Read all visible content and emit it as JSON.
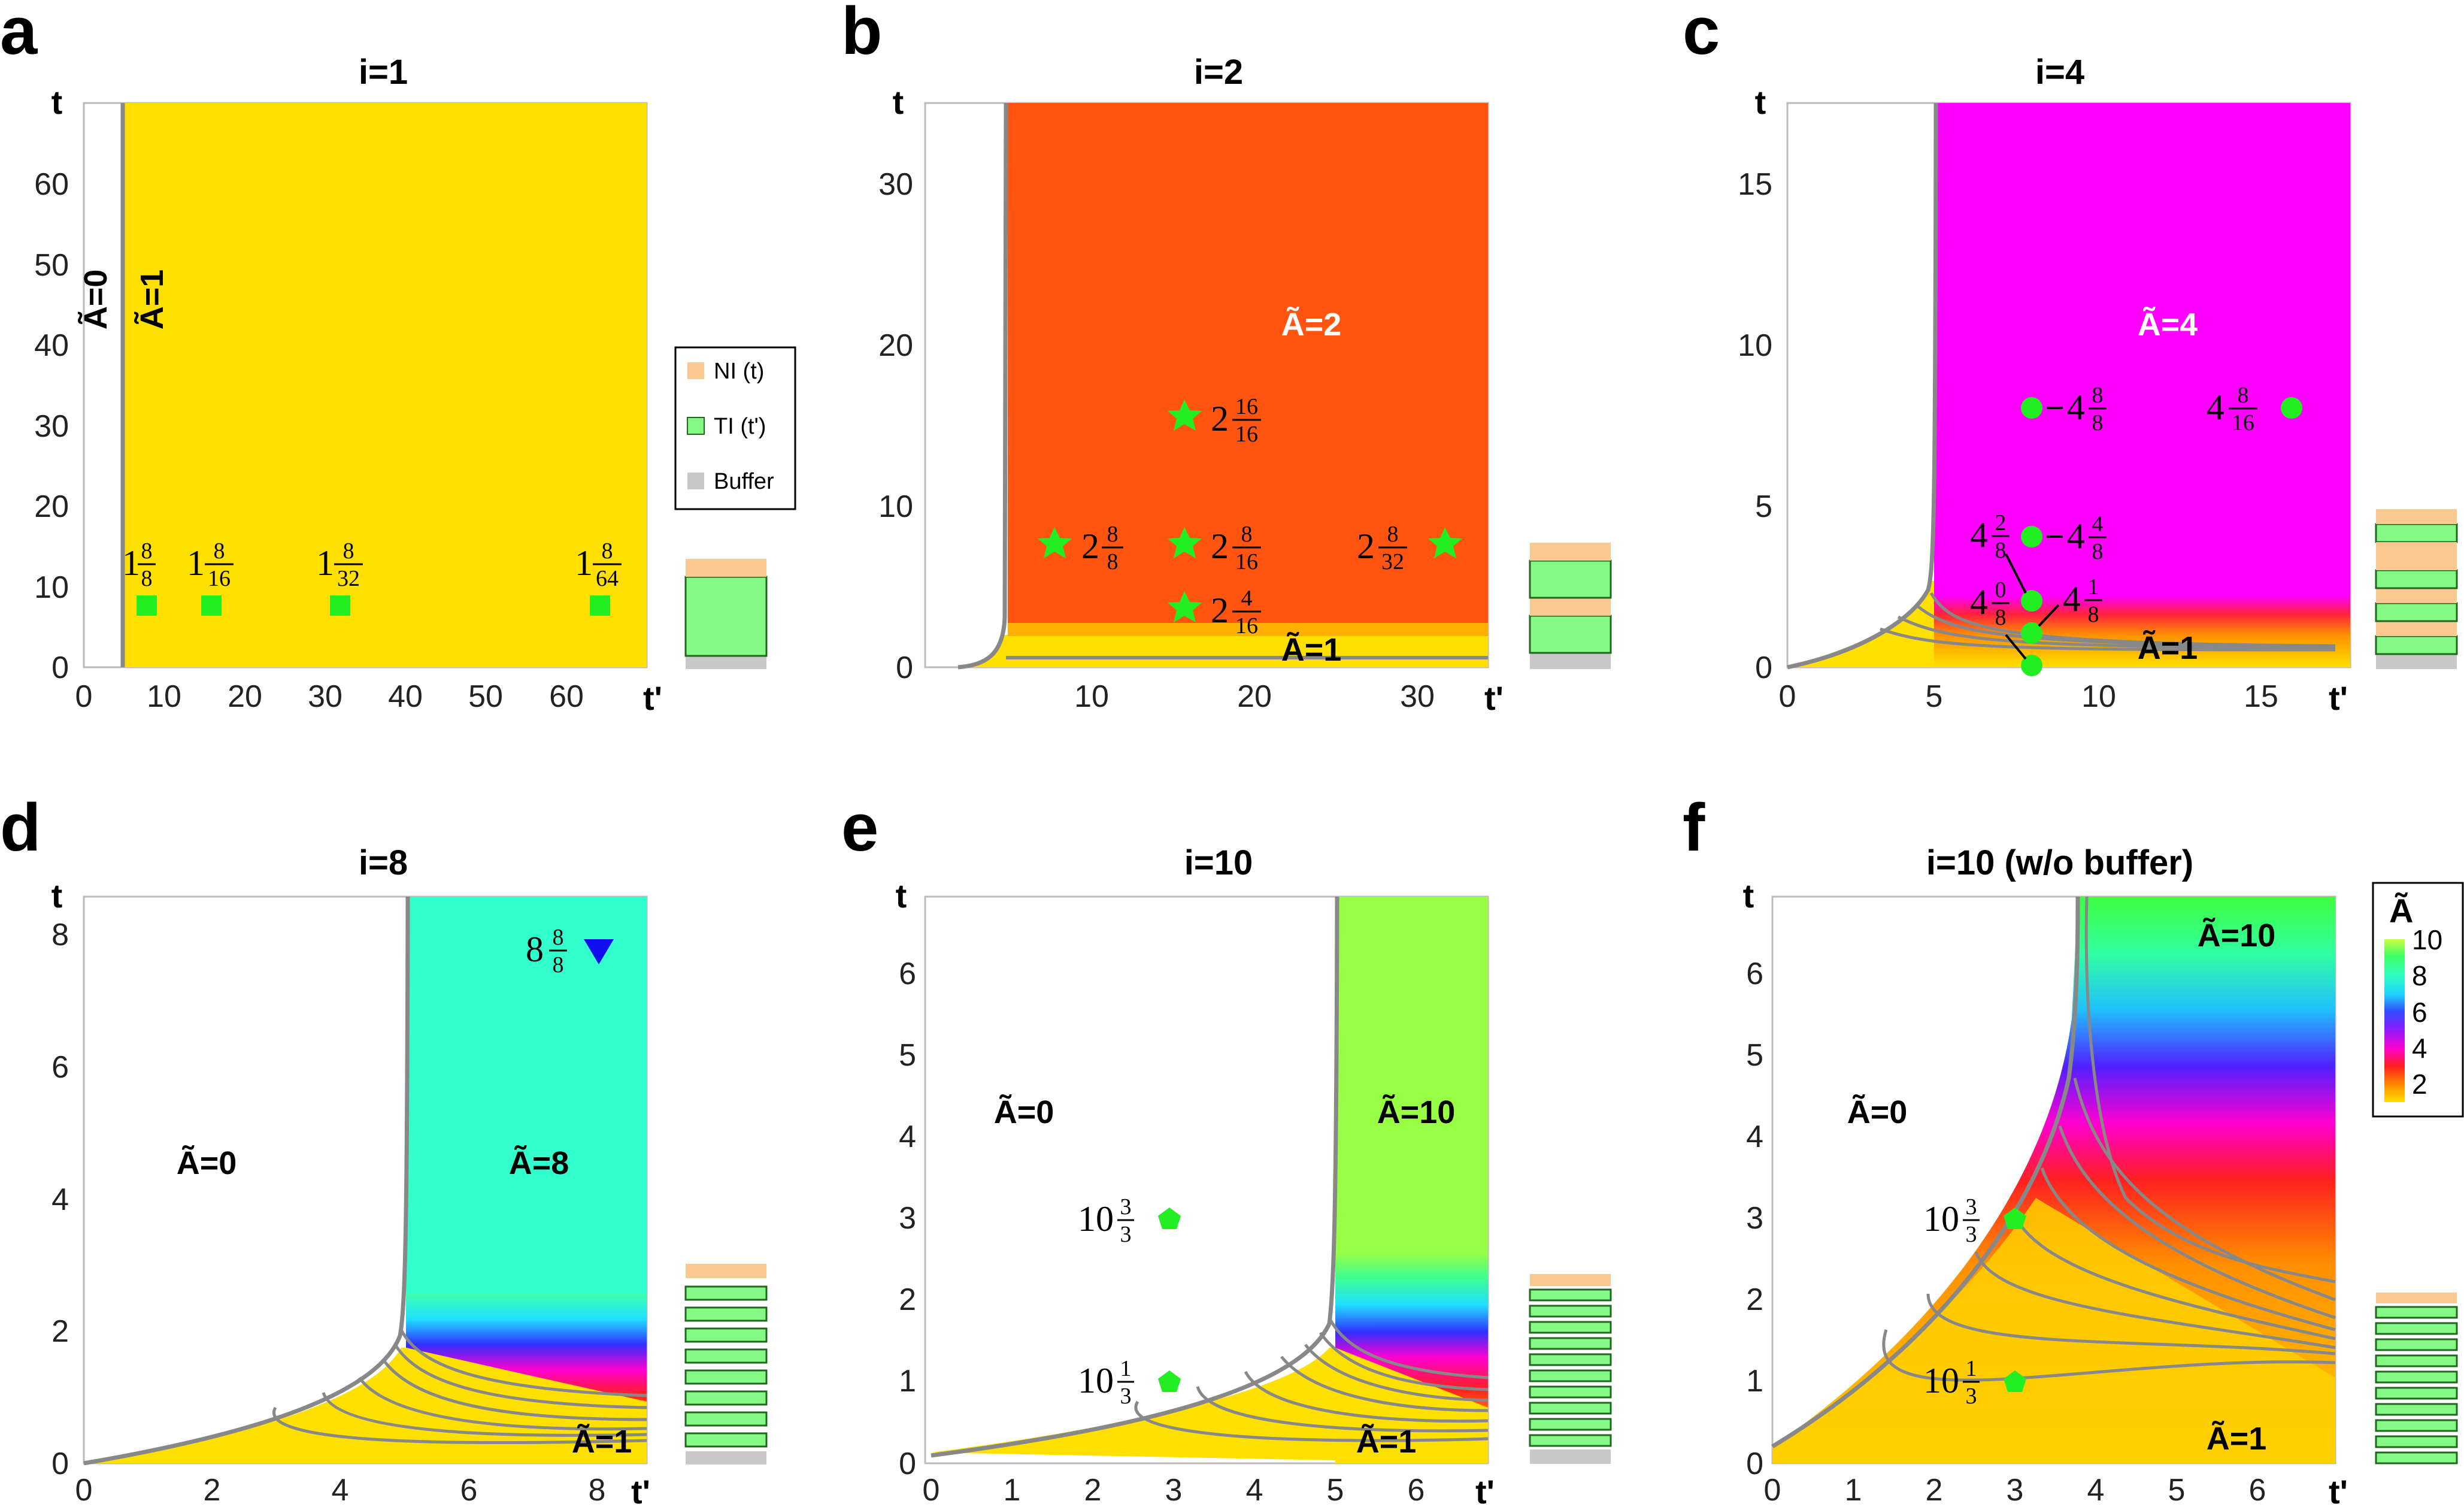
{
  "panels": [
    {
      "letter": "a",
      "title": "i=1",
      "xticks": [
        "0",
        "10",
        "20",
        "30",
        "40",
        "50",
        "60"
      ],
      "yticks": [
        "0",
        "10",
        "20",
        "30",
        "40",
        "50",
        "60"
      ],
      "xlabel": "t'",
      "ylabel": "t",
      "regions": [
        "Ã=0",
        "Ã=1"
      ],
      "markers": [
        {
          "x": 8,
          "y": 8,
          "label": "1",
          "num": "8",
          "den": "8"
        },
        {
          "x": 16,
          "y": 8,
          "label": "1",
          "num": "8",
          "den": "16"
        },
        {
          "x": 32,
          "y": 8,
          "label": "1",
          "num": "8",
          "den": "32"
        },
        {
          "x": 64,
          "y": 8,
          "label": "1",
          "num": "8",
          "den": "64"
        }
      ]
    },
    {
      "letter": "b",
      "title": "i=2",
      "xticks": [
        "10",
        "20",
        "30"
      ],
      "yticks": [
        "0",
        "10",
        "20",
        "30"
      ],
      "xlabel": "t'",
      "ylabel": "t",
      "regions": [
        "Ã=2",
        "Ã=1"
      ],
      "markers": [
        {
          "x": 8,
          "y": 8,
          "label": "2",
          "num": "8",
          "den": "8"
        },
        {
          "x": 16,
          "y": 16,
          "label": "2",
          "num": "16",
          "den": "16"
        },
        {
          "x": 16,
          "y": 8,
          "label": "2",
          "num": "8",
          "den": "16"
        },
        {
          "x": 16,
          "y": 4,
          "label": "2",
          "num": "4",
          "den": "16"
        },
        {
          "x": 32,
          "y": 8,
          "label": "2",
          "num": "8",
          "den": "32"
        }
      ]
    },
    {
      "letter": "c",
      "title": "i=4",
      "xticks": [
        "0",
        "5",
        "10",
        "15"
      ],
      "yticks": [
        "0",
        "5",
        "10",
        "15"
      ],
      "xlabel": "t'",
      "ylabel": "t",
      "regions": [
        "Ã=4",
        "Ã=1"
      ],
      "markers": [
        {
          "x": 8,
          "y": 8,
          "label": "4",
          "num": "8",
          "den": "8"
        },
        {
          "x": 16,
          "y": 8,
          "label": "4",
          "num": "8",
          "den": "16"
        },
        {
          "x": 8,
          "y": 4,
          "label": "4",
          "num": "4",
          "den": "8"
        },
        {
          "x": 8,
          "y": 2,
          "label": "4",
          "num": "2",
          "den": "8"
        },
        {
          "x": 8,
          "y": 1,
          "label": "4",
          "num": "1",
          "den": "8"
        },
        {
          "x": 8,
          "y": 0,
          "label": "4",
          "num": "0",
          "den": "8"
        }
      ]
    },
    {
      "letter": "d",
      "title": "i=8",
      "xticks": [
        "0",
        "2",
        "4",
        "6",
        "8"
      ],
      "yticks": [
        "0",
        "2",
        "4",
        "6",
        "8"
      ],
      "xlabel": "t'",
      "ylabel": "t",
      "regions": [
        "Ã=0",
        "Ã=8",
        "Ã=1"
      ],
      "markers": [
        {
          "x": 8,
          "y": 8,
          "label": "8",
          "num": "8",
          "den": "8"
        }
      ]
    },
    {
      "letter": "e",
      "title": "i=10",
      "xticks": [
        "0",
        "1",
        "2",
        "3",
        "4",
        "5",
        "6"
      ],
      "yticks": [
        "0",
        "1",
        "2",
        "3",
        "4",
        "5",
        "6"
      ],
      "xlabel": "t'",
      "ylabel": "t",
      "regions": [
        "Ã=0",
        "Ã=10",
        "Ã=1"
      ],
      "markers": [
        {
          "x": 3,
          "y": 3,
          "label": "10",
          "num": "3",
          "den": "3"
        },
        {
          "x": 3,
          "y": 1,
          "label": "10",
          "num": "1",
          "den": "3"
        }
      ]
    },
    {
      "letter": "f",
      "title": "i=10 (w/o buffer)",
      "xticks": [
        "0",
        "1",
        "2",
        "3",
        "4",
        "5",
        "6"
      ],
      "yticks": [
        "0",
        "1",
        "2",
        "3",
        "4",
        "5",
        "6"
      ],
      "xlabel": "t'",
      "ylabel": "t",
      "regions": [
        "Ã=0",
        "Ã=10",
        "Ã=1"
      ],
      "markers": [
        {
          "x": 3,
          "y": 3,
          "label": "10",
          "num": "3",
          "den": "3"
        },
        {
          "x": 3,
          "y": 1,
          "label": "10",
          "num": "1",
          "den": "3"
        }
      ]
    }
  ],
  "legend": {
    "items": [
      "NI (t)",
      "TI (t')",
      "Buffer"
    ],
    "colors": [
      "#f9c98f",
      "#84fa84",
      "#c8c8c8"
    ]
  },
  "colorbar": {
    "title": "Ã",
    "ticks": [
      "2",
      "4",
      "6",
      "8",
      "10"
    ]
  },
  "colors": {
    "yellow": "#ffe000",
    "orange": "#ff5510",
    "magenta": "#ff00ff",
    "teal": "#33ffcc",
    "lime": "#99ff44",
    "marker_green": "#22ee22",
    "marker_blue": "#1010ee",
    "curve_gray": "#888888"
  },
  "chart_data": [
    {
      "type": "heatmap",
      "title": "i=1",
      "xlabel": "t'",
      "ylabel": "t",
      "xlim": [
        0,
        70
      ],
      "ylim": [
        0,
        70
      ],
      "boundary_x": 5
    },
    {
      "type": "heatmap",
      "title": "i=2",
      "xlabel": "t'",
      "ylabel": "t",
      "xlim": [
        0,
        35
      ],
      "ylim": [
        0,
        35
      ],
      "boundary_x": 5
    },
    {
      "type": "heatmap",
      "title": "i=4",
      "xlabel": "t'",
      "ylabel": "t",
      "xlim": [
        0,
        17.5
      ],
      "ylim": [
        0,
        17.5
      ],
      "boundary_x": 5
    },
    {
      "type": "heatmap",
      "title": "i=8",
      "xlabel": "t'",
      "ylabel": "t",
      "xlim": [
        0,
        8.75
      ],
      "ylim": [
        0,
        8.75
      ],
      "boundary_x": 5
    },
    {
      "type": "heatmap",
      "title": "i=10",
      "xlabel": "t'",
      "ylabel": "t",
      "xlim": [
        0,
        7
      ],
      "ylim": [
        0,
        7
      ],
      "boundary_x": 5
    },
    {
      "type": "heatmap",
      "title": "i=10 (w/o buffer)",
      "xlabel": "t'",
      "ylabel": "t",
      "xlim": [
        0,
        7
      ],
      "ylim": [
        0,
        7
      ],
      "boundary_x": 3.8,
      "colorbar_range": [
        1,
        10
      ]
    }
  ]
}
